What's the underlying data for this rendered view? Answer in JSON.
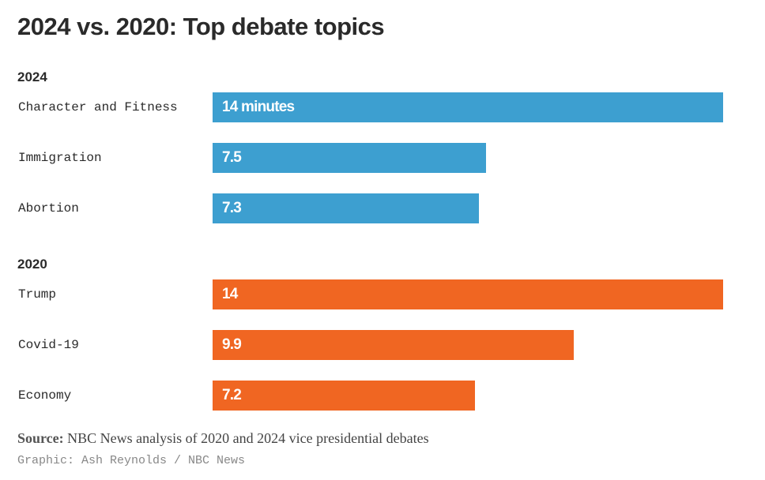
{
  "chart_data": {
    "type": "bar",
    "orientation": "horizontal",
    "title": "2024 vs. 2020: Top debate topics",
    "xlim": [
      0,
      14
    ],
    "groups": [
      {
        "name": "2024",
        "color": "#3d9fd0",
        "categories": [
          "Character and Fitness",
          "Immigration",
          "Abortion"
        ],
        "values": [
          14,
          7.5,
          7.3
        ],
        "value_labels": [
          "14 minutes",
          "7.5",
          "7.3"
        ]
      },
      {
        "name": "2020",
        "color": "#f06622",
        "categories": [
          "Trump",
          "Covid-19",
          "Economy"
        ],
        "values": [
          14,
          9.9,
          7.2
        ],
        "value_labels": [
          "14",
          "9.9",
          "7.2"
        ]
      }
    ]
  },
  "footer": {
    "source_label": "Source:",
    "source_text": "NBC News analysis of 2020 and 2024 vice presidential debates",
    "credit": "Graphic: Ash Reynolds / NBC News"
  }
}
